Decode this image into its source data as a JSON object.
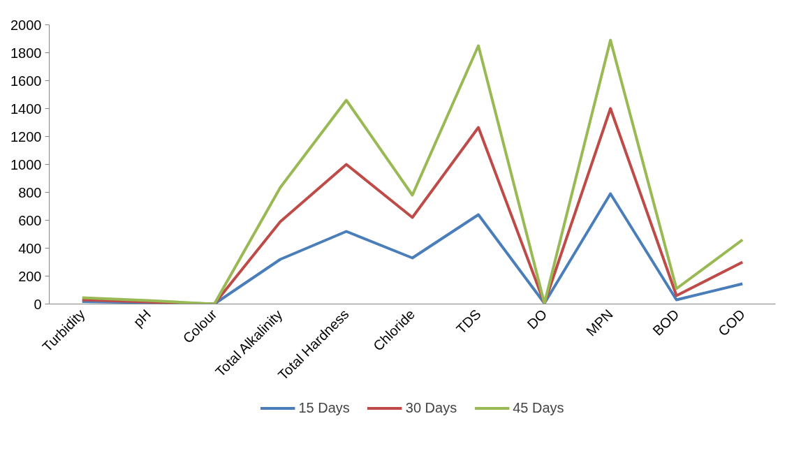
{
  "chart_data": {
    "type": "line",
    "categories": [
      "Turbidity",
      "pH",
      "Colour",
      "Total Alkalinity",
      "Total Hardness",
      "Chloride",
      "TDS",
      "DO",
      "MPN",
      "BOD",
      "COD"
    ],
    "series": [
      {
        "name": "15 Days",
        "color": "#4a7ebb",
        "values": [
          18,
          10,
          0,
          320,
          520,
          330,
          640,
          5,
          790,
          30,
          145
        ]
      },
      {
        "name": "30 Days",
        "color": "#be4b48",
        "values": [
          30,
          15,
          0,
          590,
          1000,
          620,
          1265,
          5,
          1400,
          60,
          300
        ]
      },
      {
        "name": "45 Days",
        "color": "#98b954",
        "values": [
          45,
          25,
          0,
          835,
          1460,
          780,
          1850,
          5,
          1890,
          110,
          460
        ]
      }
    ],
    "ylim": [
      0,
      2000
    ],
    "yticks": [
      0,
      200,
      400,
      600,
      800,
      1000,
      1200,
      1400,
      1600,
      1800,
      2000
    ],
    "grid": false,
    "legend": "bottom",
    "marker": "none",
    "line_style": "solid"
  }
}
